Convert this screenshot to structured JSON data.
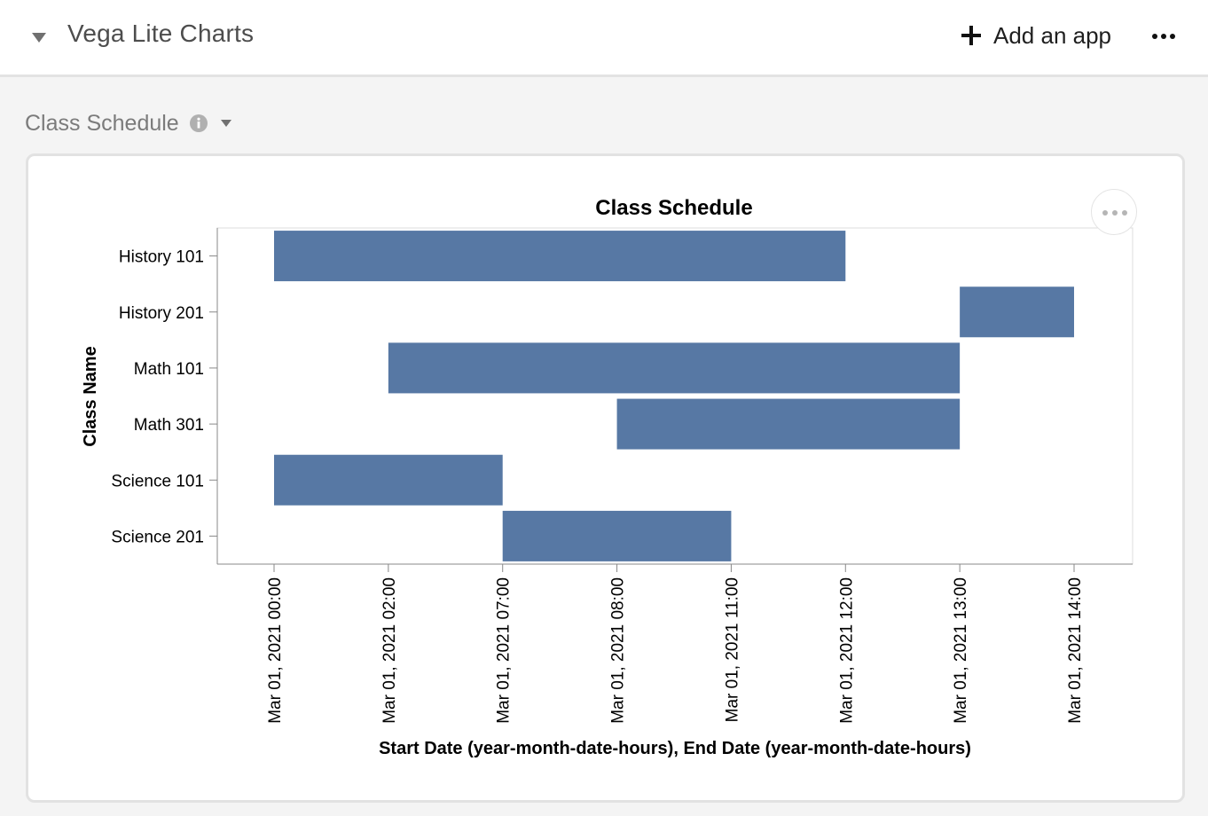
{
  "header": {
    "app_name": "Vega Lite Charts",
    "add_app_label": "Add an app",
    "collapse_icon": "caret-down-icon",
    "add_icon": "plus-icon",
    "more_icon": "ellipsis-icon"
  },
  "block": {
    "title": "Class Schedule",
    "info_icon": "info-icon",
    "menu_icon": "caret-down-icon"
  },
  "colors": {
    "bar": "#5778a4",
    "app_title": "#4d4d4d",
    "block_title": "#7b7b7b"
  },
  "chart_data": {
    "type": "gantt",
    "title": "Class Schedule",
    "xlabel": "Start Date (year-month-date-hours), End Date (year-month-date-hours)",
    "ylabel": "Class Name",
    "x_scale": "ordinal",
    "x_ticks": [
      "Mar 01, 2021 00:00",
      "Mar 01, 2021 02:00",
      "Mar 01, 2021 07:00",
      "Mar 01, 2021 08:00",
      "Mar 01, 2021 11:00",
      "Mar 01, 2021 12:00",
      "Mar 01, 2021 13:00",
      "Mar 01, 2021 14:00"
    ],
    "categories": [
      "History 101",
      "History 201",
      "Math 101",
      "Math 301",
      "Science 101",
      "Science 201"
    ],
    "bars": [
      {
        "name": "History 101",
        "start": "Mar 01, 2021 00:00",
        "end": "Mar 01, 2021 12:00"
      },
      {
        "name": "History 201",
        "start": "Mar 01, 2021 13:00",
        "end": "Mar 01, 2021 14:00"
      },
      {
        "name": "Math 101",
        "start": "Mar 01, 2021 02:00",
        "end": "Mar 01, 2021 13:00"
      },
      {
        "name": "Math 301",
        "start": "Mar 01, 2021 08:00",
        "end": "Mar 01, 2021 13:00"
      },
      {
        "name": "Science 101",
        "start": "Mar 01, 2021 00:00",
        "end": "Mar 01, 2021 07:00"
      },
      {
        "name": "Science 201",
        "start": "Mar 01, 2021 07:00",
        "end": "Mar 01, 2021 11:00"
      }
    ],
    "grid": false,
    "legend": "none"
  }
}
